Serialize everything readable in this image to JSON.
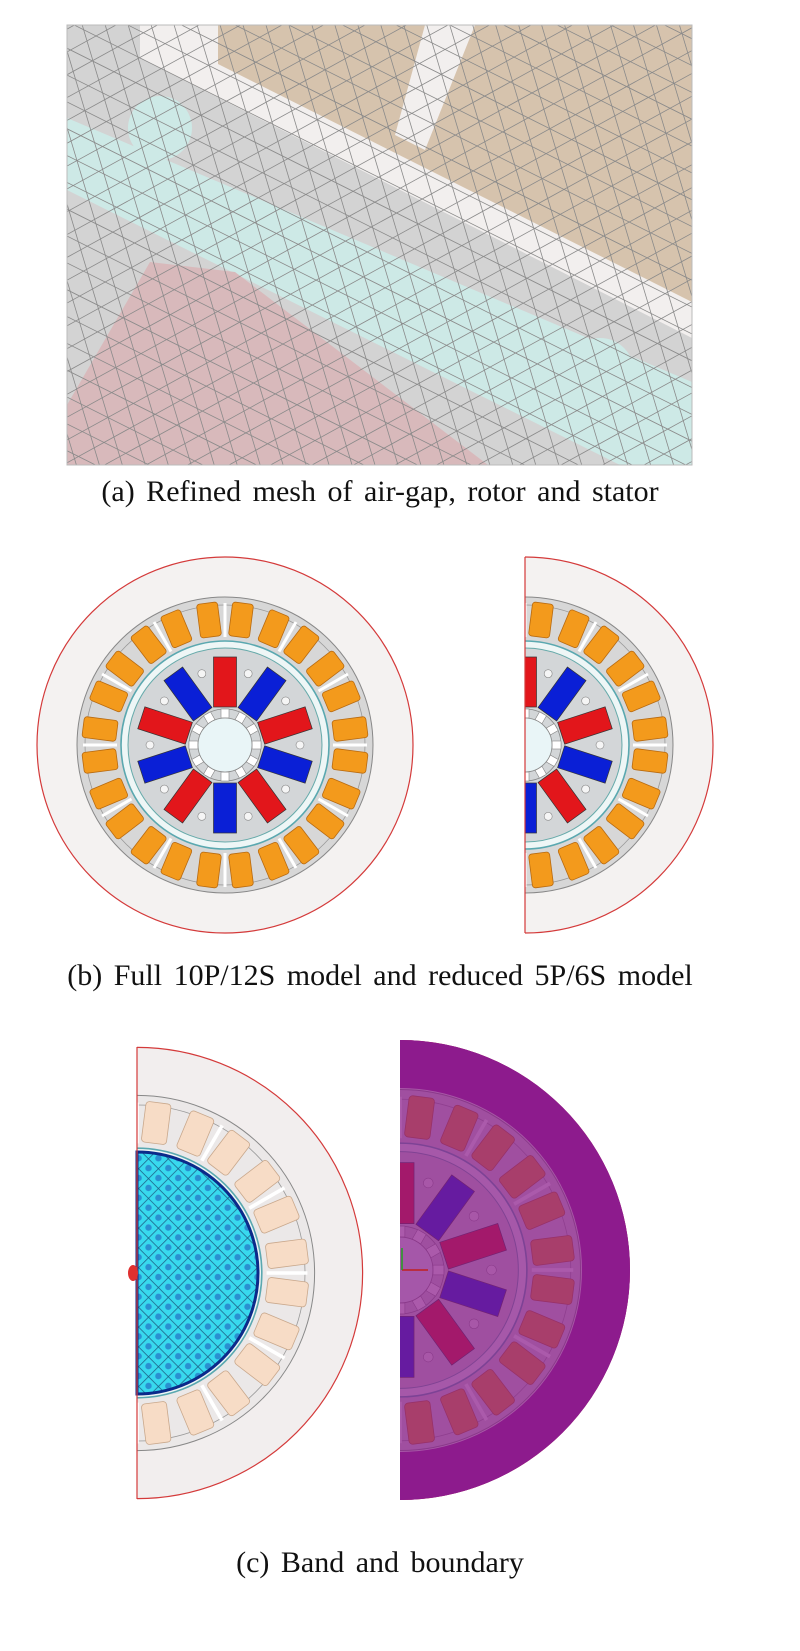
{
  "panels": [
    {
      "caption": "(a) Refined mesh of air-gap, rotor and stator"
    },
    {
      "caption": "(b) Full 10P/12S model and reduced 5P/6S model"
    },
    {
      "caption": "(c) Band and boundary"
    }
  ]
}
